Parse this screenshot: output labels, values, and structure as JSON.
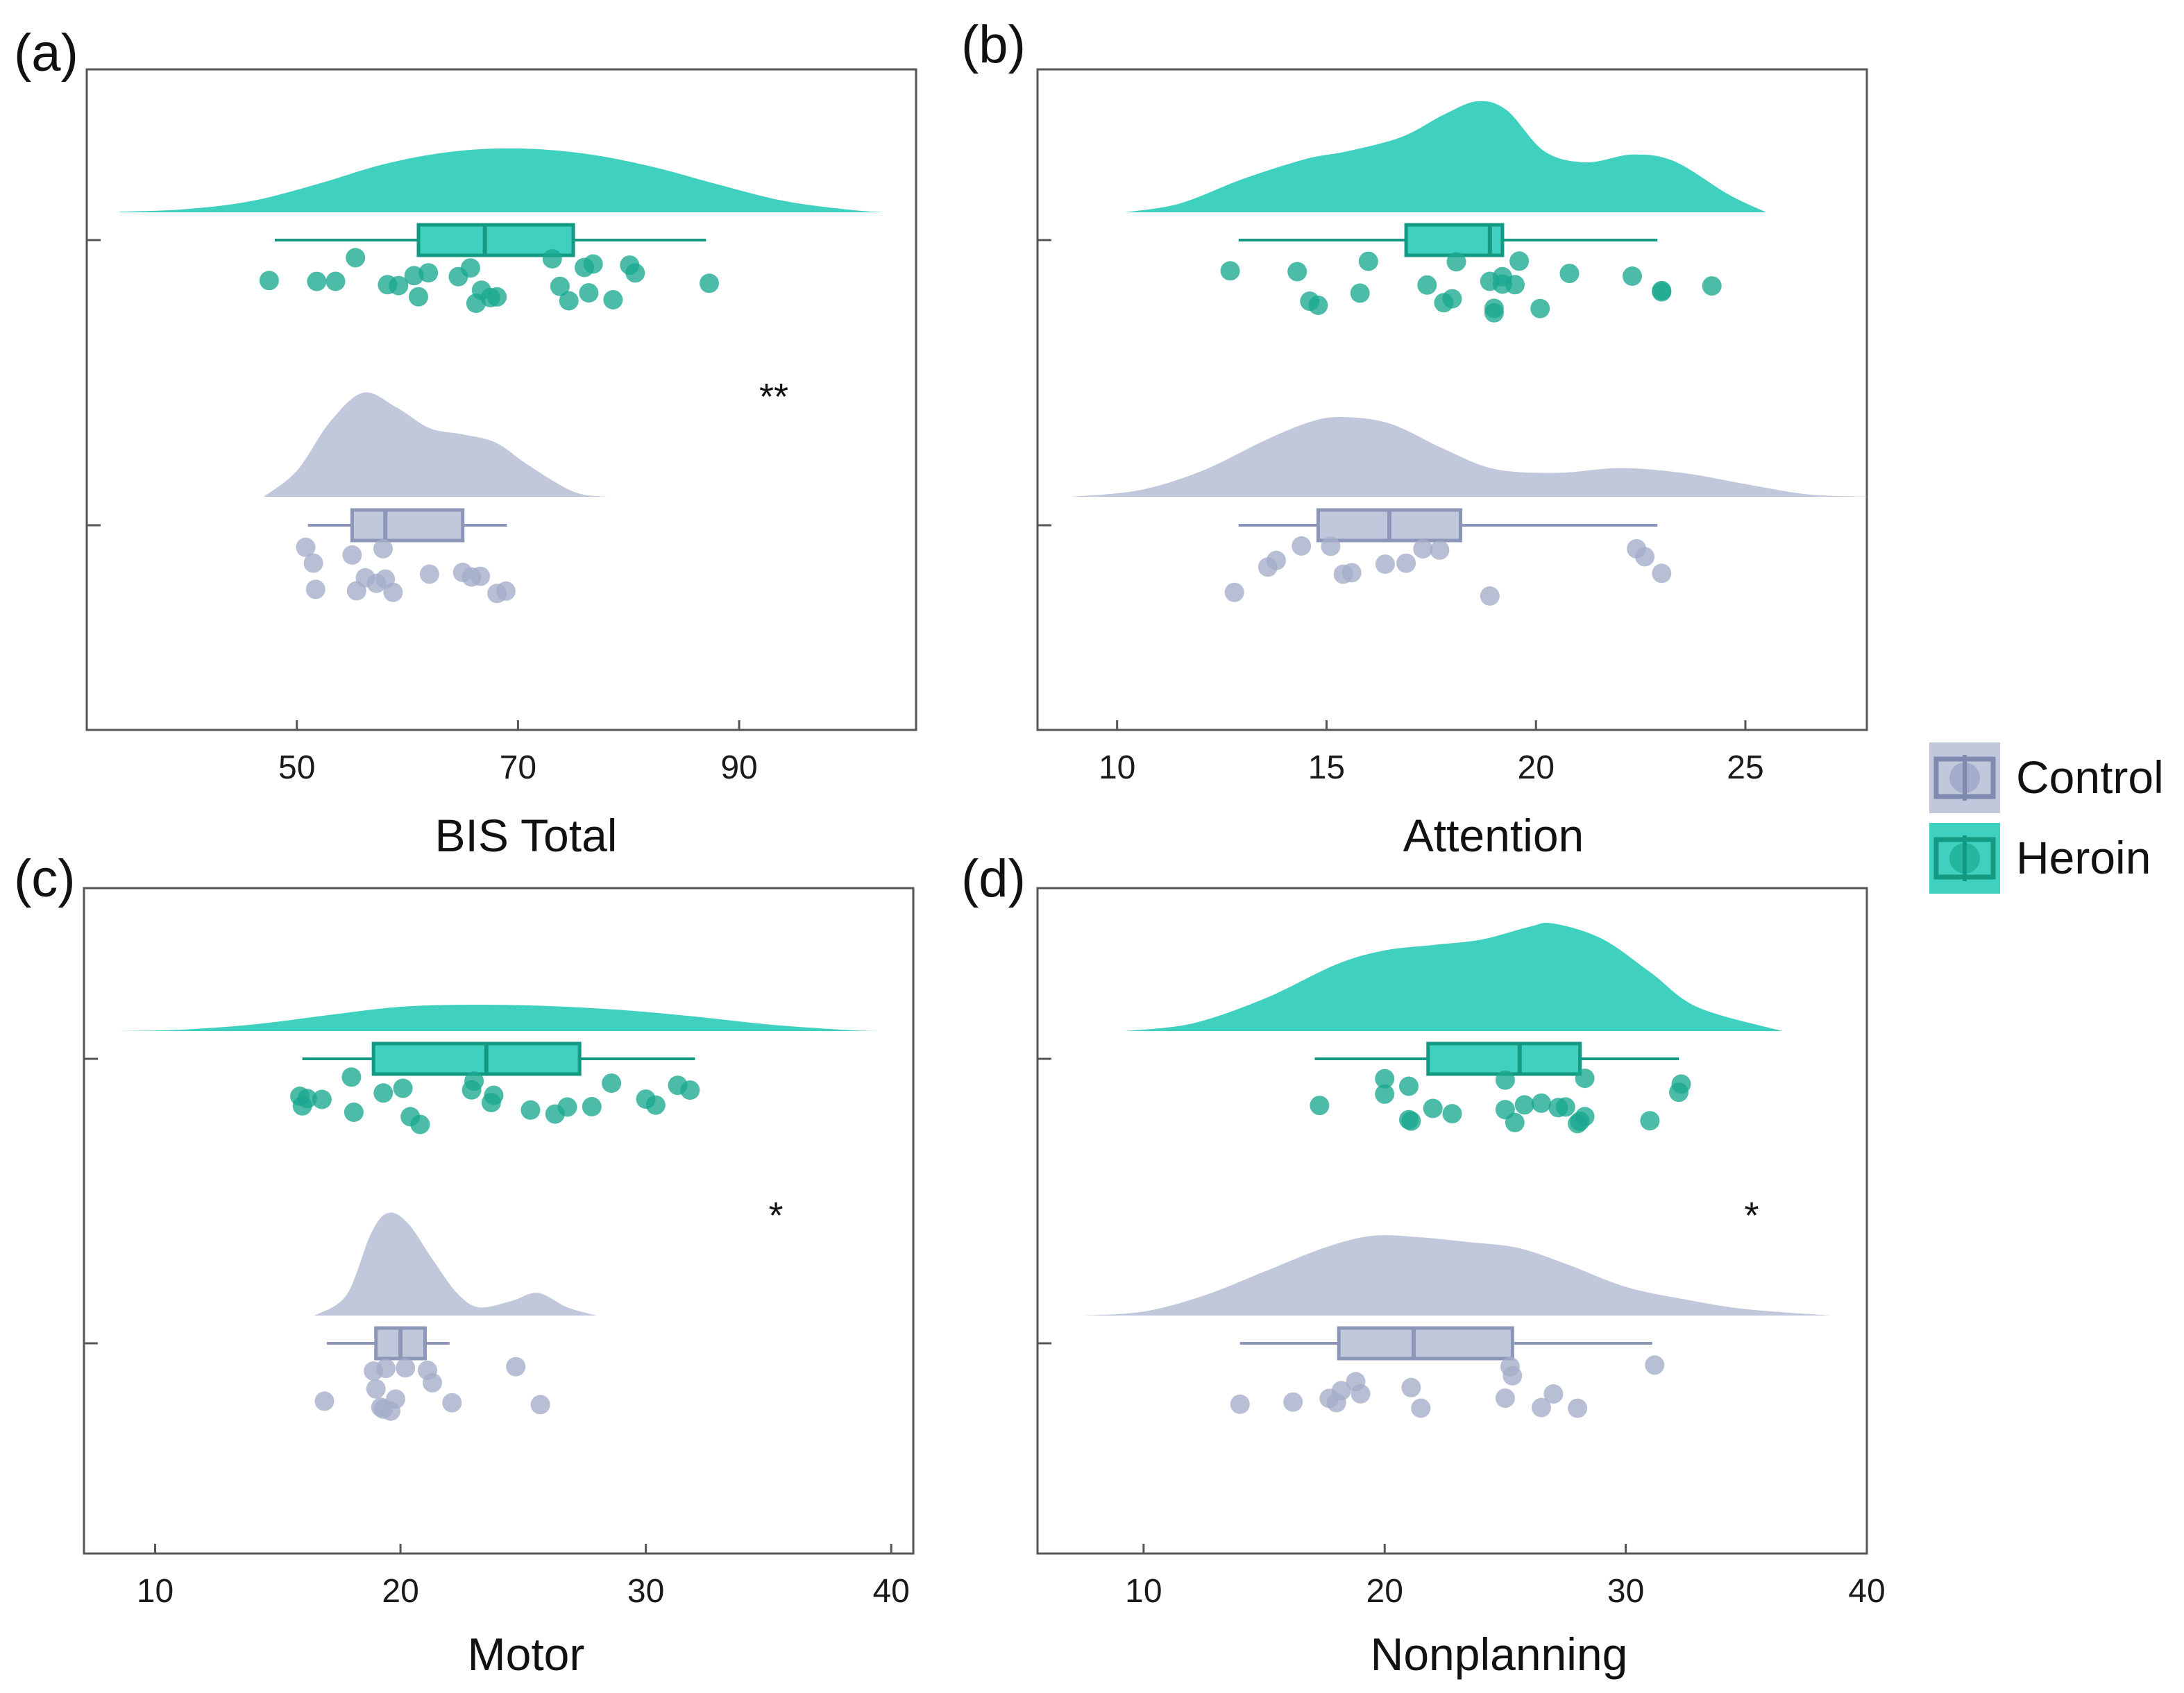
{
  "legend": {
    "items": [
      {
        "label": "Control",
        "color": "#8f9abf",
        "fill": "#c2c8dc"
      },
      {
        "label": "Heroin",
        "color": "#1aa88f",
        "fill": "#40d0c0"
      }
    ]
  },
  "chart_data": [
    {
      "panel": "(a)",
      "type": "raincloud",
      "xlabel": "BIS Total",
      "xlim": [
        31,
        106
      ],
      "xticks": [
        50,
        70,
        90
      ],
      "significance": "**",
      "groups": [
        {
          "name": "Heroin",
          "density": {
            "x": [
              34,
              40,
              46,
              52,
              58,
              64,
              70,
              76,
              82,
              88,
              94,
              100,
              103
            ],
            "y": [
              0.01,
              0.05,
              0.18,
              0.45,
              0.76,
              0.95,
              1.0,
              0.92,
              0.72,
              0.44,
              0.18,
              0.04,
              0.0
            ]
          },
          "box": {
            "whisker_low": 48,
            "q1": 61,
            "median": 67,
            "q3": 75,
            "whisker_high": 87
          },
          "points": [
            47.5,
            51.8,
            53.5,
            55.3,
            58.2,
            59.2,
            60.6,
            61.0,
            61.9,
            64.6,
            65.7,
            66.2,
            66.7,
            67.5,
            68.1,
            73.1,
            73.8,
            74.6,
            76.0,
            76.4,
            76.8,
            78.6,
            80.1,
            80.6,
            87.3
          ]
        },
        {
          "name": "Control",
          "density": {
            "x": [
              47,
              50,
              53,
              56,
              59,
              62,
              65,
              68,
              71,
              75,
              78
            ],
            "y": [
              0.0,
              0.25,
              0.72,
              1.0,
              0.86,
              0.66,
              0.6,
              0.52,
              0.3,
              0.05,
              0.0
            ]
          },
          "box": {
            "whisker_low": 51,
            "q1": 55,
            "median": 58,
            "q3": 65,
            "whisker_high": 69
          },
          "points": [
            50.8,
            51.5,
            51.7,
            55.0,
            55.4,
            56.2,
            57.2,
            57.8,
            58.0,
            58.7,
            62.0,
            65.0,
            65.8,
            66.6,
            68.1,
            68.9
          ]
        }
      ]
    },
    {
      "panel": "(b)",
      "type": "raincloud",
      "xlabel": "Attention",
      "xlim": [
        8.1,
        27.9
      ],
      "xticks": [
        10,
        15,
        20,
        25
      ],
      "significance": "",
      "groups": [
        {
          "name": "Heroin",
          "density": {
            "x": [
              10.2,
              11.5,
              13,
              14.5,
              15.5,
              16.8,
              17.8,
              18.6,
              19.3,
              20.2,
              21.2,
              22.3,
              23.3,
              24.6,
              25.5
            ],
            "y": [
              0.0,
              0.08,
              0.3,
              0.48,
              0.55,
              0.68,
              0.88,
              1.0,
              0.92,
              0.55,
              0.45,
              0.52,
              0.46,
              0.16,
              0.0
            ]
          },
          "box": {
            "whisker_low": 12.9,
            "q1": 16.9,
            "median": 18.9,
            "q3": 19.2,
            "whisker_high": 22.9
          },
          "points": [
            12.7,
            14.3,
            14.6,
            14.8,
            15.8,
            16.0,
            17.4,
            17.8,
            18.0,
            18.1,
            18.9,
            19.0,
            19.0,
            19.2,
            19.2,
            19.5,
            19.6,
            20.1,
            20.8,
            22.3,
            23.0,
            23.0,
            24.2
          ]
        },
        {
          "name": "Control",
          "density": {
            "x": [
              8.9,
              10.5,
              12,
              13.5,
              14.5,
              15.3,
              16.5,
              17.8,
              19,
              20.5,
              22,
              23.5,
              25,
              26.5,
              28
            ],
            "y": [
              0.0,
              0.08,
              0.32,
              0.7,
              0.92,
              1.0,
              0.92,
              0.6,
              0.35,
              0.3,
              0.36,
              0.3,
              0.16,
              0.03,
              0.0
            ]
          },
          "box": {
            "whisker_low": 12.9,
            "q1": 14.8,
            "median": 16.5,
            "q3": 18.2,
            "whisker_high": 22.9
          },
          "points": [
            12.8,
            13.6,
            13.8,
            14.4,
            15.1,
            15.4,
            15.6,
            16.4,
            16.9,
            17.3,
            17.7,
            18.9,
            22.4,
            22.6,
            23.0
          ]
        }
      ]
    },
    {
      "panel": "(c)",
      "type": "raincloud",
      "xlabel": "Motor",
      "xlim": [
        7.1,
        40.9
      ],
      "xticks": [
        10,
        20,
        30,
        40
      ],
      "significance": "*",
      "groups": [
        {
          "name": "Heroin",
          "density": {
            "x": [
              8.5,
              11,
              14,
              17,
              20,
              23,
              26,
              29,
              32,
              35,
              38,
              39.5
            ],
            "y": [
              0.0,
              0.05,
              0.25,
              0.6,
              0.92,
              1.0,
              0.95,
              0.8,
              0.55,
              0.25,
              0.05,
              0.0
            ]
          },
          "box": {
            "whisker_low": 16.0,
            "q1": 18.9,
            "median": 23.5,
            "q3": 27.3,
            "whisker_high": 32.0
          },
          "points": [
            15.9,
            16.0,
            16.2,
            16.8,
            18.0,
            18.1,
            19.3,
            20.1,
            20.4,
            20.8,
            22.9,
            23.0,
            23.7,
            23.8,
            25.3,
            26.3,
            26.8,
            27.8,
            28.6,
            30.0,
            30.4,
            31.3,
            31.8
          ]
        },
        {
          "name": "Control",
          "density": {
            "x": [
              16.5,
              17.8,
              18.8,
              19.5,
              20.3,
              21.3,
              22.3,
              23.2,
              24.5,
              25.6,
              26.8,
              28.0
            ],
            "y": [
              0.0,
              0.2,
              0.8,
              1.0,
              0.9,
              0.55,
              0.22,
              0.08,
              0.14,
              0.22,
              0.08,
              0.0
            ]
          },
          "box": {
            "whisker_low": 17.0,
            "q1": 19.0,
            "median": 20.0,
            "q3": 21.0,
            "whisker_high": 22.0
          },
          "points": [
            16.9,
            18.9,
            19.0,
            19.2,
            19.3,
            19.4,
            19.6,
            19.8,
            20.2,
            21.1,
            21.3,
            22.1,
            24.7,
            25.7
          ]
        }
      ]
    },
    {
      "panel": "(d)",
      "type": "raincloud",
      "xlabel": "Nonplanning",
      "xlim": [
        5.6,
        40.0
      ],
      "xticks": [
        10,
        20,
        30,
        40
      ],
      "significance": "*",
      "groups": [
        {
          "name": "Heroin",
          "density": {
            "x": [
              9.2,
              12,
              15,
              18,
              20,
              22,
              24,
              26,
              27,
              29,
              31,
              33,
              36.5
            ],
            "y": [
              0.0,
              0.07,
              0.3,
              0.62,
              0.75,
              0.8,
              0.85,
              0.97,
              1.0,
              0.86,
              0.55,
              0.22,
              0.0
            ]
          },
          "box": {
            "whisker_low": 17.1,
            "q1": 21.8,
            "median": 25.6,
            "q3": 28.1,
            "whisker_high": 32.2
          },
          "points": [
            17.3,
            20.0,
            20.0,
            21.0,
            21.0,
            21.1,
            22.0,
            22.8,
            25.0,
            25.0,
            25.4,
            25.8,
            26.5,
            27.2,
            27.5,
            28.0,
            28.1,
            28.3,
            28.3,
            31.0,
            32.2,
            32.3
          ]
        },
        {
          "name": "Control",
          "density": {
            "x": [
              7.5,
              10,
              12.5,
              15,
              17.5,
              19.5,
              21.5,
              23.5,
              25.5,
              27.5,
              30,
              32.5,
              35,
              38.5
            ],
            "y": [
              0.0,
              0.05,
              0.25,
              0.55,
              0.85,
              1.0,
              0.98,
              0.92,
              0.85,
              0.65,
              0.36,
              0.2,
              0.08,
              0.0
            ]
          },
          "box": {
            "whisker_low": 14.0,
            "q1": 18.1,
            "median": 21.2,
            "q3": 25.3,
            "whisker_high": 31.1
          },
          "points": [
            14.0,
            16.2,
            17.7,
            18.0,
            18.2,
            18.8,
            19.0,
            21.1,
            21.5,
            25.0,
            25.2,
            25.3,
            26.5,
            27.0,
            28.0,
            31.2
          ]
        }
      ]
    }
  ]
}
